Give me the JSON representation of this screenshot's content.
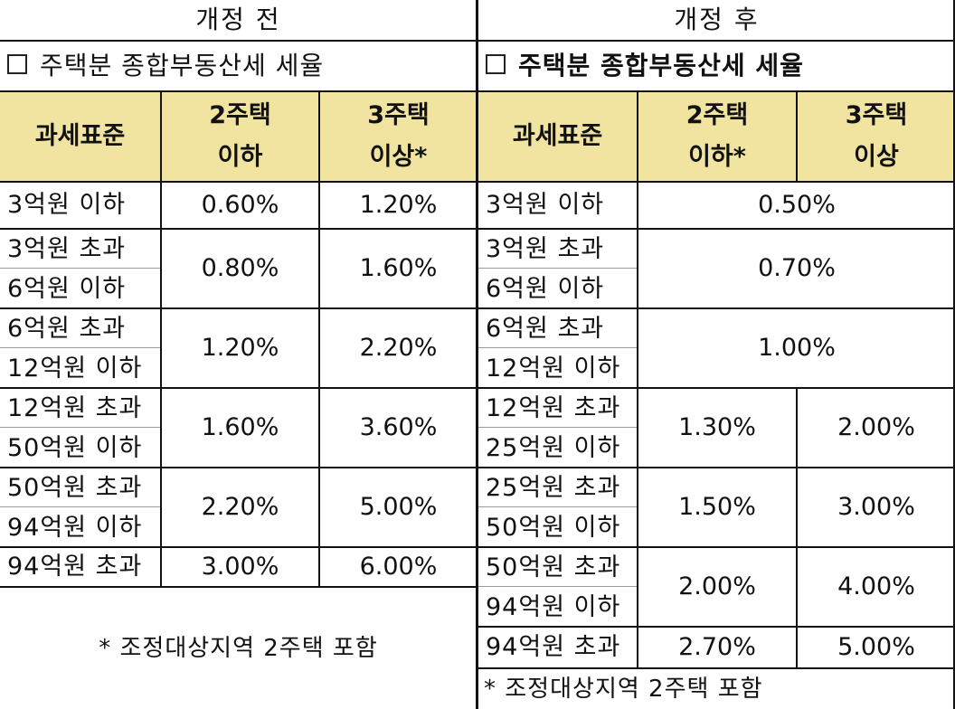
{
  "before": {
    "title": "개정 전",
    "subtitle": "주택분 종합부동산세 세율",
    "headers": {
      "base": "과세표준",
      "two_house": [
        "2주택",
        "이하"
      ],
      "three_house": [
        "3주택",
        "이상*"
      ]
    },
    "rows": [
      {
        "label": [
          "3억원 이하"
        ],
        "two": "0.60%",
        "three": "1.20%"
      },
      {
        "label": [
          "3억원 초과",
          "6억원 이하"
        ],
        "two": "0.80%",
        "three": "1.60%"
      },
      {
        "label": [
          "6억원 초과",
          "12억원 이하"
        ],
        "two": "1.20%",
        "three": "2.20%"
      },
      {
        "label": [
          "12억원 초과",
          "50억원 이하"
        ],
        "two": "1.60%",
        "three": "3.60%"
      },
      {
        "label": [
          "50억원 초과",
          "94억원 이하"
        ],
        "two": "2.20%",
        "three": "5.00%"
      },
      {
        "label": [
          "94억원 초과"
        ],
        "two": "3.00%",
        "three": "6.00%"
      }
    ],
    "note": "* 조정대상지역 2주택 포함"
  },
  "after": {
    "title": "개정 후",
    "subtitle": "주택분 종합부동산세 세율",
    "headers": {
      "base": "과세표준",
      "two_house": [
        "2주택",
        "이하*"
      ],
      "three_house": [
        "3주택",
        "이상"
      ]
    },
    "rows": [
      {
        "label": [
          "3억원 이하"
        ],
        "merged": "0.50%"
      },
      {
        "label": [
          "3억원 초과",
          "6억원 이하"
        ],
        "merged": "0.70%"
      },
      {
        "label": [
          "6억원 초과",
          "12억원 이하"
        ],
        "merged": "1.00%"
      },
      {
        "label": [
          "12억원 초과",
          "25억원 이하"
        ],
        "two": "1.30%",
        "three": "2.00%"
      },
      {
        "label": [
          "25억원 초과",
          "50억원 이하"
        ],
        "two": "1.50%",
        "three": "3.00%"
      },
      {
        "label": [
          "50억원 초과",
          "94억원 이하"
        ],
        "two": "2.00%",
        "three": "4.00%"
      },
      {
        "label": [
          "94억원 초과"
        ],
        "two": "2.70%",
        "three": "5.00%"
      }
    ],
    "note": "* 조정대상지역 2주택 포함"
  }
}
